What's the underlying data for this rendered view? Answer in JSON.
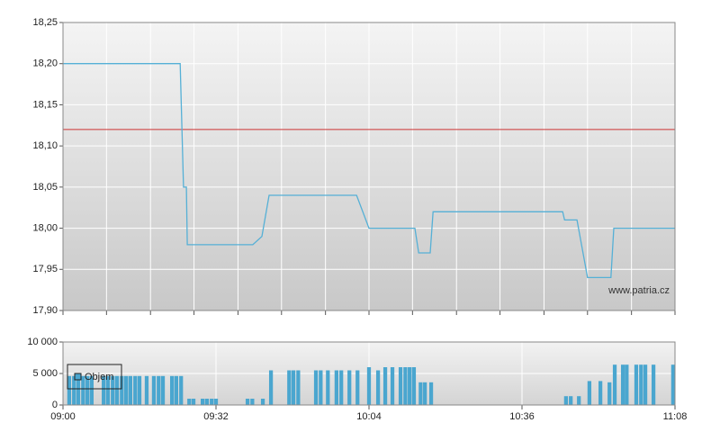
{
  "chart_data": [
    {
      "type": "line",
      "x": [
        540,
        564.5,
        565.2,
        565.8,
        566.0,
        579.7,
        581.6,
        583.1,
        601.4,
        604.0,
        613.6,
        614.4,
        616.8,
        617.4,
        644.5,
        644.9,
        647.5,
        649.7,
        654.6,
        655.2,
        668
      ],
      "values": [
        18.2,
        18.2,
        18.05,
        18.05,
        17.98,
        17.98,
        17.99,
        18.04,
        18.04,
        18.0,
        18.0,
        17.97,
        17.97,
        18.02,
        18.02,
        18.01,
        18.01,
        17.94,
        17.94,
        18.0,
        18.0
      ],
      "color": "#55b0d6",
      "reference_line": 18.12,
      "reference_color": "#cc3333",
      "watermark": "www.patria.cz",
      "xlim": [
        540,
        668
      ],
      "x_minor_ticks": [
        549.1,
        558.3,
        567.4,
        576.6,
        585.7,
        594.9,
        604.0,
        613.1,
        622.3,
        631.4,
        640.6,
        649.7,
        658.9
      ],
      "ylim": [
        17.9,
        18.25
      ],
      "yticks": [
        {
          "value": 17.9,
          "label": "17,90"
        },
        {
          "value": 17.95,
          "label": "17,95"
        },
        {
          "value": 18.0,
          "label": "18,00"
        },
        {
          "value": 18.05,
          "label": "18,05"
        },
        {
          "value": 18.1,
          "label": "18,10"
        },
        {
          "value": 18.15,
          "label": "18,15"
        },
        {
          "value": 18.2,
          "label": "18,20"
        },
        {
          "value": 18.25,
          "label": "18,25"
        }
      ],
      "grid": true
    },
    {
      "type": "bar",
      "series": [
        {
          "name": "Objem",
          "color": "#4aa6cf",
          "x": [
            540.9,
            541.9,
            542.8,
            543.8,
            544.7,
            545.6,
            548.1,
            549.0,
            550.0,
            550.9,
            551.9,
            552.8,
            553.7,
            554.7,
            555.6,
            557.1,
            558.6,
            559.6,
            560.5,
            562.4,
            563.3,
            564.3,
            566.0,
            566.9,
            568.8,
            569.7,
            570.7,
            571.6,
            578.2,
            579.2,
            581.4,
            583.1,
            586.9,
            587.8,
            588.8,
            592.5,
            593.5,
            595.0,
            596.8,
            597.8,
            599.5,
            601.2,
            603.6,
            605.5,
            607.0,
            608.5,
            610.2,
            611.2,
            612.1,
            613.0,
            614.4,
            615.3,
            616.6,
            644.8,
            645.8,
            647.5,
            649.7,
            652.0,
            653.9,
            655.0,
            656.7,
            657.5,
            659.5,
            660.5,
            661.4,
            663.1,
            667.8
          ],
          "values": [
            4600,
            4600,
            4600,
            4600,
            4600,
            4600,
            4600,
            4600,
            4600,
            4600,
            4600,
            4600,
            4600,
            4600,
            4600,
            4600,
            4600,
            4600,
            4600,
            4600,
            4600,
            4600,
            1000,
            1000,
            1000,
            1000,
            1000,
            1000,
            1000,
            1000,
            1000,
            5500,
            5500,
            5500,
            5500,
            5500,
            5500,
            5500,
            5500,
            5500,
            5500,
            5500,
            6000,
            5500,
            6000,
            6000,
            6000,
            6000,
            6000,
            6000,
            3600,
            3600,
            3600,
            1400,
            1400,
            1400,
            3800,
            3800,
            3600,
            6400,
            6400,
            6400,
            6400,
            6400,
            6400,
            6400,
            6400
          ]
        }
      ],
      "xlim": [
        540,
        668
      ],
      "xticks": [
        {
          "value": 540,
          "label": "09:00"
        },
        {
          "value": 572,
          "label": "09:32"
        },
        {
          "value": 604,
          "label": "10:04"
        },
        {
          "value": 636,
          "label": "10:36"
        },
        {
          "value": 668,
          "label": "11:08"
        }
      ],
      "ylim": [
        0,
        10000
      ],
      "yticks": [
        0,
        {
          "value": 5000,
          "label": "5 000"
        },
        {
          "value": 10000,
          "label": "10 000"
        }
      ],
      "grid": true
    }
  ]
}
